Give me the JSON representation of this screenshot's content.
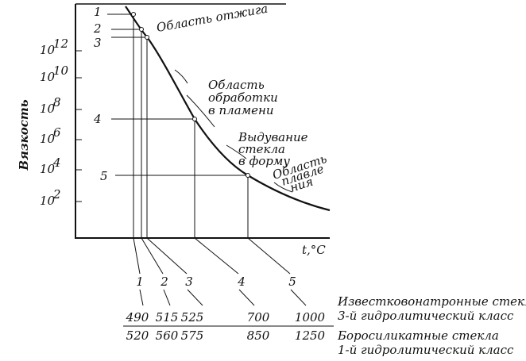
{
  "y_axis_label": "Вязкость",
  "x_axis_label": "t,°C",
  "y_ticks": [
    {
      "base": "10",
      "exp": "12"
    },
    {
      "base": "10",
      "exp": "10"
    },
    {
      "base": "10",
      "exp": "8"
    },
    {
      "base": "10",
      "exp": "6"
    },
    {
      "base": "10",
      "exp": "4"
    },
    {
      "base": "10",
      "exp": "2"
    }
  ],
  "point_labels": [
    "1",
    "2",
    "3",
    "4",
    "5"
  ],
  "regions": [
    {
      "lines": [
        "Область отжига"
      ]
    },
    {
      "lines": [
        "Область",
        "обработки",
        "в пламени"
      ]
    },
    {
      "lines": [
        "Выдувание",
        "стекла",
        "в форму"
      ]
    },
    {
      "lines": [
        "Область",
        "плавле",
        "ния"
      ]
    }
  ],
  "table": {
    "columns": [
      "1",
      "2",
      "3",
      "4",
      "5"
    ],
    "rows": [
      {
        "values": [
          "490",
          "515",
          "525",
          "700",
          "1000"
        ],
        "label": [
          "Известковонатронные стекла",
          "3-й гидролитический класс"
        ]
      },
      {
        "values": [
          "520",
          "560",
          "575",
          "850",
          "1250"
        ],
        "label": [
          "Боросиликатные стекла",
          "1-й гидролитический класс"
        ]
      }
    ]
  }
}
